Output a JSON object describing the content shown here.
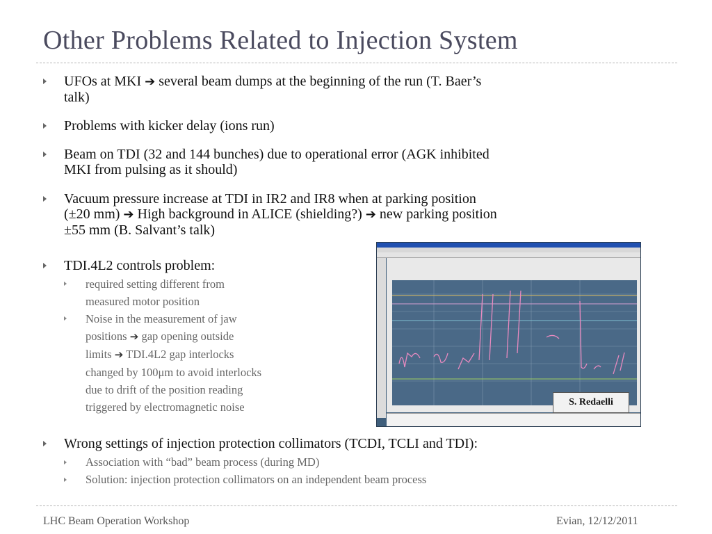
{
  "title": "Other Problems Related to Injection System",
  "bullets": [
    {
      "line1_a": "UFOs at MKI ",
      "arrow1": "➔",
      "line1_b": " several beam dumps at the beginning of the run (T. Baer’s",
      "line2": "talk)"
    },
    {
      "line1": "Problems with kicker delay (ions run)"
    },
    {
      "line1": "Beam on TDI (32 and 144 bunches) due to operational error (AGK inhibited",
      "line2": "MKI from pulsing as it should)"
    },
    {
      "line1": "Vacuum pressure increase at TDI in IR2 and IR8 when at parking position",
      "line2_a": "(±20 mm) ",
      "arrow2": "➔",
      "line2_b": " High background in ALICE (shielding?) ",
      "arrow3": "➔",
      "line2_c": " new parking position",
      "line3": "±55 mm (B. Salvant’s talk)"
    },
    {
      "line1": "TDI.4L2 controls problem:"
    },
    {
      "line1": "Wrong settings of injection protection collimators (TCDI, TCLI and TDI):"
    }
  ],
  "sub_bullets_tdi": [
    {
      "lines": [
        "required setting different from",
        "measured motor position"
      ]
    },
    {
      "l1": "Noise in the measurement of jaw",
      "l2a": "positions ",
      "arrow_a": "➔",
      "l2b": " gap opening outside",
      "l3a": "limits ",
      "arrow_b": "➔",
      "l3b": " TDI.4L2 gap interlocks",
      "l4": "changed by 100μm to avoid interlocks",
      "l5": "due to drift of the position reading",
      "l6": "triggered by electromagnetic noise"
    }
  ],
  "sub_bullets_coll": [
    "Association with “bad” beam process (during MD)",
    "Solution: injection protection collimators on an independent beam process"
  ],
  "image_caption": "S. Redaelli",
  "footer": {
    "left": "LHC Beam Operation Workshop",
    "right": "Evian, 12/12/2011"
  },
  "colors": {
    "title": "#4a4a5e",
    "subtext": "#666666",
    "plot_background": "#4a6987",
    "trace": "#e88ac0"
  }
}
